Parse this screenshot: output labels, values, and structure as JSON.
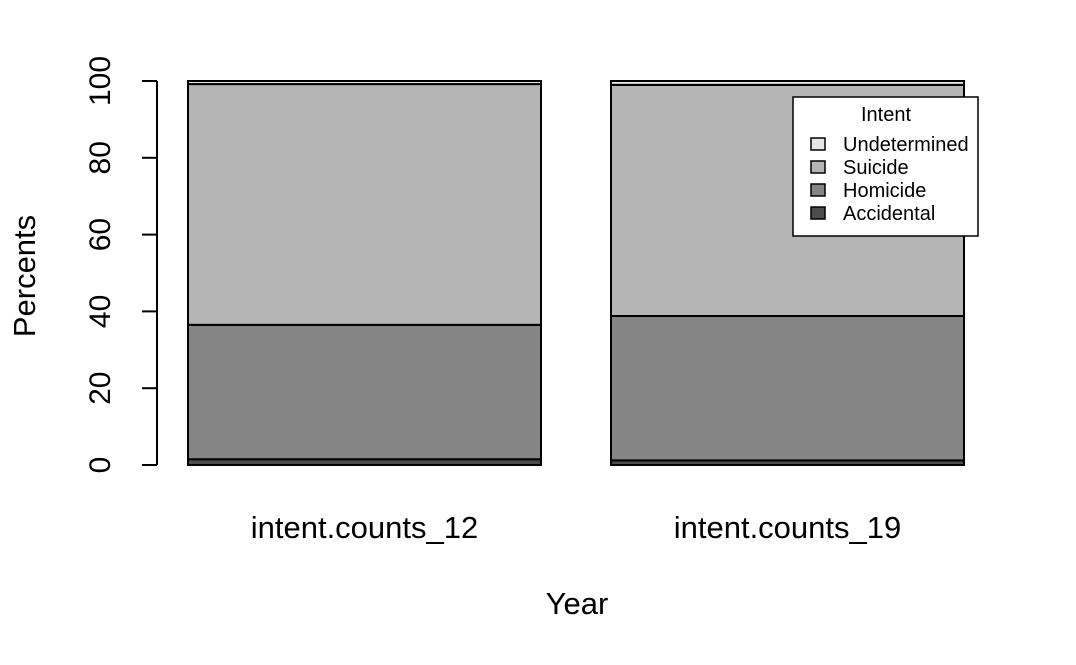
{
  "chart_data": {
    "type": "bar",
    "stacked": true,
    "categories": [
      "intent.counts_12",
      "intent.counts_19"
    ],
    "series": [
      {
        "name": "Accidental",
        "color": "#4d4d4d",
        "values": [
          1.5,
          1.2
        ]
      },
      {
        "name": "Homicide",
        "color": "#858585",
        "values": [
          35.0,
          37.6
        ]
      },
      {
        "name": "Suicide",
        "color": "#b5b5b5",
        "values": [
          62.7,
          60.2
        ]
      },
      {
        "name": "Undetermined",
        "color": "#e6e6e6",
        "values": [
          0.8,
          1.0
        ]
      }
    ],
    "xlabel": "Year",
    "ylabel": "Percents",
    "ylim": [
      0,
      100
    ],
    "yticks": [
      "0",
      "20",
      "40",
      "60",
      "80",
      "100"
    ],
    "grid": false,
    "legend": {
      "title": "Intent",
      "position": "top-right",
      "entries": [
        "Undetermined",
        "Suicide",
        "Homicide",
        "Accidental"
      ]
    }
  }
}
